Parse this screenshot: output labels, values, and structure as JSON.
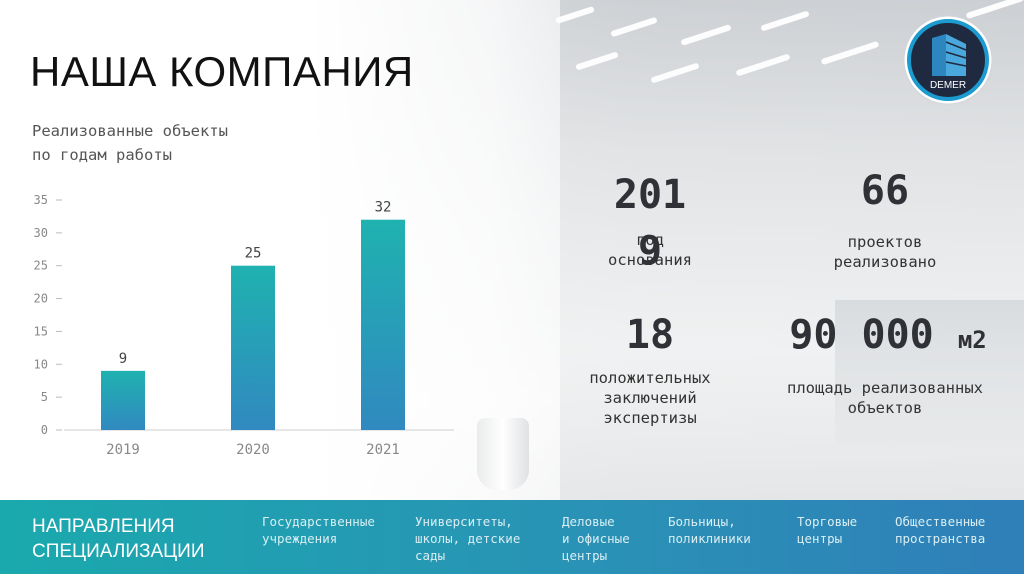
{
  "header": {
    "title": "НАША КОМПАНИЯ",
    "subtitle_line1": "Реализованные объекты",
    "subtitle_line2": "по годам работы"
  },
  "logo": {
    "text": "DEMER",
    "icon": "building-logo-icon",
    "ring_color": "#1c9bd0",
    "fill_color": "#1f2a40"
  },
  "chart_data": {
    "type": "bar",
    "title": "",
    "xlabel": "",
    "ylabel": "",
    "categories": [
      "2019",
      "2020",
      "2021"
    ],
    "values": [
      9,
      25,
      32
    ],
    "ylim": [
      0,
      35
    ],
    "yticks": [
      0,
      5,
      10,
      15,
      20,
      25,
      30,
      35
    ],
    "data_labels": true,
    "grid": false,
    "bar_color_top": "#1fb2b0",
    "bar_color_bottom": "#3189c0"
  },
  "stats": {
    "founded_value_line1": "201",
    "founded_value_line2": "9",
    "founded_label_line1": "год",
    "founded_label_line2": "основания",
    "projects_value": "66",
    "projects_label_line1": "проектов",
    "projects_label_line2": "реализовано",
    "expertise_value": "18",
    "expertise_label_line1": "положительных",
    "expertise_label_line2": "заключений",
    "expertise_label_line3": "экспертизы",
    "area_value": "90 000",
    "area_unit": "м2",
    "area_label_line1": "площадь реализованных",
    "area_label_line2": "объектов"
  },
  "footer": {
    "title_line1": "НАПРАВЛЕНИЯ",
    "title_line2": "СПЕЦИАЛИЗАЦИИ",
    "directions": [
      {
        "line1": "Государственные",
        "line2": "учреждения",
        "line3": ""
      },
      {
        "line1": "Университеты,",
        "line2": "школы, детские",
        "line3": "сады"
      },
      {
        "line1": "Деловые",
        "line2": "и офисные",
        "line3": "центры"
      },
      {
        "line1": "Больницы,",
        "line2": "поликлиники",
        "line3": ""
      },
      {
        "line1": "Торговые",
        "line2": "центры",
        "line3": ""
      },
      {
        "line1": "Общественные",
        "line2": "пространства",
        "line3": ""
      }
    ],
    "band_color": "#1aa9ad"
  }
}
